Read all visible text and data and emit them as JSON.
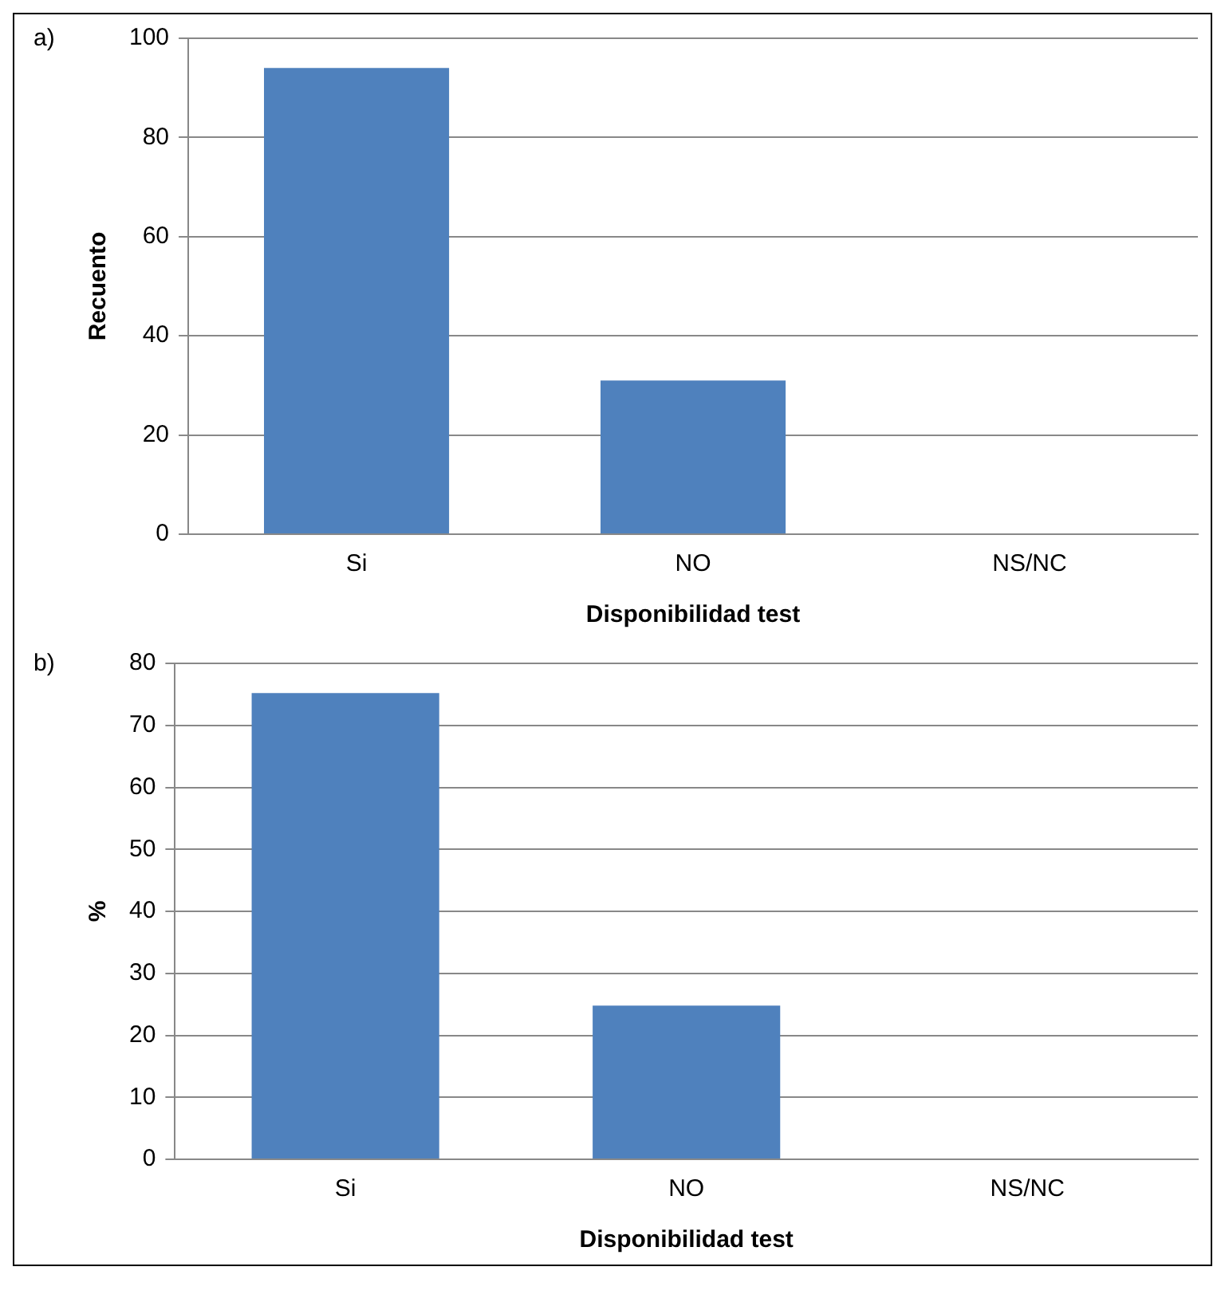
{
  "chart_data": [
    {
      "type": "bar",
      "annotations": [
        "a)"
      ],
      "xlabel": "Disponibilidad test",
      "ylabel": "Recuento",
      "categories": [
        "Si",
        "NO",
        "NS/NC"
      ],
      "values": [
        94,
        31,
        0
      ],
      "color": "#4f81bd",
      "ylim": [
        0,
        100
      ],
      "yticks": [
        0,
        20,
        40,
        60,
        80,
        100
      ],
      "grid": "y",
      "legend": false
    },
    {
      "type": "bar",
      "annotations": [
        "b)"
      ],
      "xlabel": "Disponibilidad test",
      "ylabel": "%",
      "categories": [
        "Si",
        "NO",
        "NS/NC"
      ],
      "values": [
        75.2,
        24.8,
        0
      ],
      "color": "#4f81bd",
      "ylim": [
        0,
        80
      ],
      "yticks": [
        0,
        10,
        20,
        30,
        40,
        50,
        60,
        70,
        80
      ],
      "grid": "y",
      "legend": false
    }
  ]
}
